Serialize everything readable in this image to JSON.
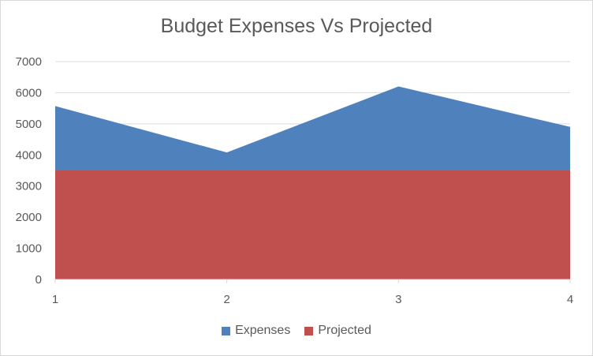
{
  "chart_data": {
    "type": "area",
    "title": "Budget Expenses Vs Projected",
    "x": [
      1,
      2,
      3,
      4
    ],
    "ylim": [
      0,
      7000
    ],
    "yticks": [
      0,
      1000,
      2000,
      3000,
      4000,
      5000,
      6000,
      7000
    ],
    "series": [
      {
        "name": "Expenses",
        "values": [
          5570,
          4080,
          6200,
          4900
        ],
        "color": "#4f81bd"
      },
      {
        "name": "Projected",
        "values": [
          3500,
          3500,
          3500,
          3500
        ],
        "color": "#c0504d"
      }
    ],
    "grid": true,
    "legend": "bottom"
  }
}
